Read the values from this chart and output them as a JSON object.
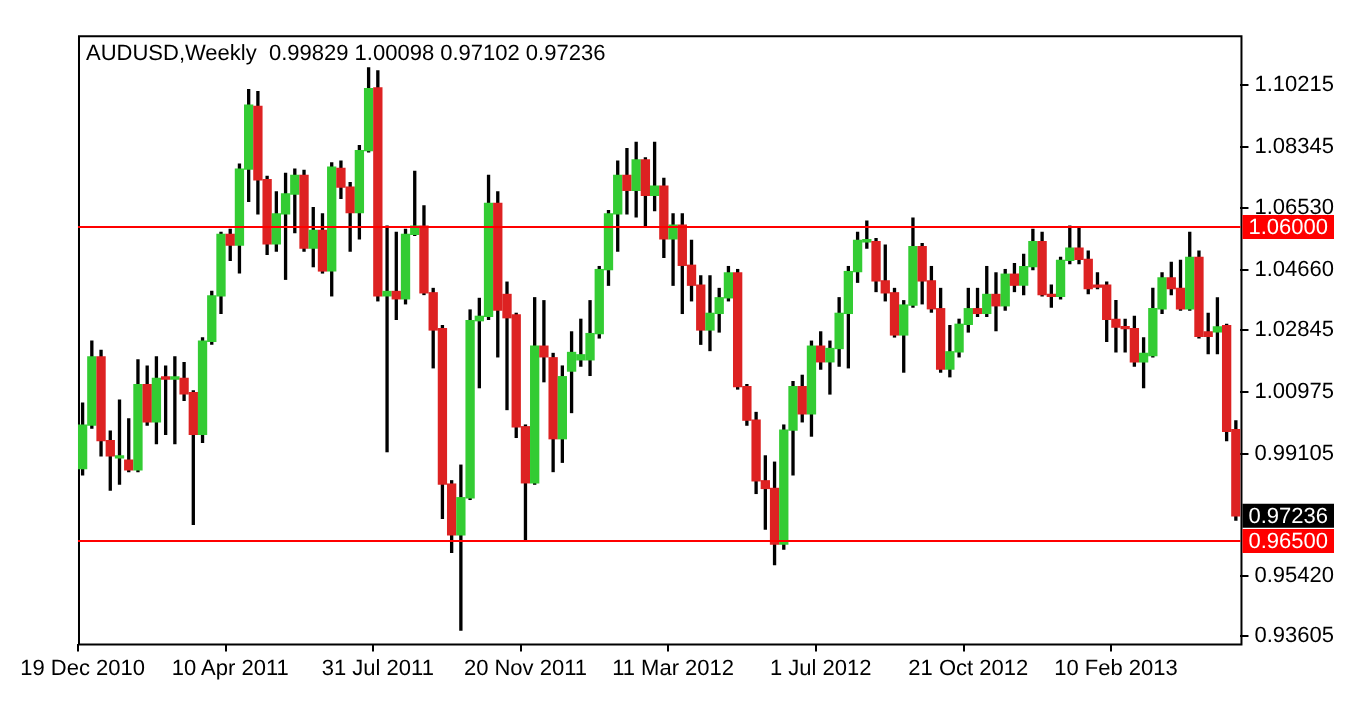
{
  "chart_data": {
    "type": "candlestick",
    "title": "AUDUSD,Weekly  0.99829 1.00098 0.97102 0.97236",
    "categories": [
      "19 Dec 2010",
      null,
      null,
      null,
      null,
      null,
      null,
      null,
      null,
      null,
      null,
      null,
      null,
      null,
      null,
      null,
      "10 Apr 2011",
      null,
      null,
      null,
      null,
      null,
      null,
      null,
      null,
      null,
      null,
      null,
      null,
      null,
      null,
      null,
      "31 Jul 2011",
      null,
      null,
      null,
      null,
      null,
      null,
      null,
      null,
      null,
      null,
      null,
      null,
      null,
      null,
      null,
      "20 Nov 2011",
      null,
      null,
      null,
      null,
      null,
      null,
      null,
      null,
      null,
      null,
      null,
      null,
      null,
      null,
      null,
      "11 Mar 2012",
      null,
      null,
      null,
      null,
      null,
      null,
      null,
      null,
      null,
      null,
      null,
      null,
      null,
      null,
      null,
      "1 Jul 2012",
      null,
      null,
      null,
      null,
      null,
      null,
      null,
      null,
      null,
      null,
      null,
      null,
      null,
      null,
      null,
      "21 Oct 2012",
      null,
      null,
      null,
      null,
      null,
      null,
      null,
      null,
      null,
      null,
      null,
      null,
      null,
      null,
      null,
      "10 Feb 2013",
      null,
      null,
      null,
      null,
      null,
      null,
      null,
      null,
      null,
      null,
      null,
      null,
      null
    ],
    "ohlc": [
      [
        0.9866,
        1.0063,
        0.9847,
        0.9997
      ],
      [
        0.9997,
        1.025,
        0.9988,
        1.0203
      ],
      [
        1.0203,
        1.0222,
        0.9904,
        0.995
      ],
      [
        0.995,
        0.9979,
        0.9801,
        0.9904
      ],
      [
        0.9898,
        1.0072,
        0.9819,
        0.99
      ],
      [
        0.9891,
        1.0016,
        0.9857,
        0.9862
      ],
      [
        0.9862,
        1.0194,
        0.9857,
        1.0119
      ],
      [
        1.0119,
        1.0175,
        0.9997,
        1.0007
      ],
      [
        1.0007,
        1.0203,
        0.9941,
        1.0138
      ],
      [
        1.0138,
        1.0175,
        0.9969,
        1.0136
      ],
      [
        1.0136,
        1.0203,
        0.9941,
        1.0138
      ],
      [
        1.0138,
        1.0185,
        1.0072,
        1.0091
      ],
      [
        1.0095,
        1.01,
        0.9698,
        0.9969
      ],
      [
        0.9969,
        1.026,
        0.9945,
        1.025
      ],
      [
        1.025,
        1.04,
        1.0241,
        1.0387
      ],
      [
        1.0387,
        1.0578,
        1.0334,
        1.0572
      ],
      [
        1.0572,
        1.0587,
        1.0494,
        1.054
      ],
      [
        1.054,
        1.0784,
        1.0456,
        1.0769
      ],
      [
        1.0769,
        1.1009,
        1.0672,
        1.0962
      ],
      [
        1.0958,
        1.1003,
        1.0634,
        1.0737
      ],
      [
        1.0737,
        1.0747,
        1.0512,
        1.0544
      ],
      [
        1.0544,
        1.07,
        1.0522,
        1.0634
      ],
      [
        1.0634,
        1.0756,
        1.0437,
        1.0694
      ],
      [
        1.0694,
        1.0769,
        1.0578,
        1.075
      ],
      [
        1.075,
        1.0765,
        1.0522,
        1.0531
      ],
      [
        1.0531,
        1.0653,
        1.0475,
        1.0584
      ],
      [
        1.0584,
        1.0634,
        1.0456,
        1.0462
      ],
      [
        1.0462,
        1.0788,
        1.0387,
        1.0775
      ],
      [
        1.0771,
        1.0793,
        1.0681,
        1.0715
      ],
      [
        1.0715,
        1.0728,
        1.0522,
        1.0638
      ],
      [
        1.0638,
        1.084,
        1.0559,
        1.0825
      ],
      [
        1.0825,
        1.1074,
        1.0821,
        1.1012
      ],
      [
        1.1014,
        1.1065,
        1.0372,
        1.0387
      ],
      [
        1.0387,
        1.0597,
        0.9917,
        1.04
      ],
      [
        1.04,
        1.0578,
        1.0316,
        1.0378
      ],
      [
        1.0378,
        1.0587,
        1.0363,
        1.0572
      ],
      [
        1.0572,
        1.0762,
        1.0569,
        1.0597
      ],
      [
        1.0597,
        1.0658,
        1.0391,
        1.0396
      ],
      [
        1.0396,
        1.0409,
        1.017,
        1.0284
      ],
      [
        1.0288,
        1.0297,
        0.9716,
        0.9819
      ],
      [
        0.9819,
        0.9829,
        0.9613,
        0.9666
      ],
      [
        0.9666,
        0.9876,
        0.9379,
        0.9778
      ],
      [
        0.9778,
        1.0344,
        0.9773,
        1.0312
      ],
      [
        1.0312,
        1.0379,
        1.011,
        1.0325
      ],
      [
        1.0325,
        1.075,
        1.0316,
        1.0666
      ],
      [
        1.0666,
        1.07,
        1.0203,
        1.0344
      ],
      [
        1.0391,
        1.0428,
        1.0044,
        1.0321
      ],
      [
        1.0329,
        1.0334,
        0.996,
        0.9992
      ],
      [
        0.9992,
        0.9997,
        0.9651,
        0.9823
      ],
      [
        0.9823,
        1.0381,
        0.9819,
        1.0235
      ],
      [
        1.0235,
        1.0372,
        1.0128,
        1.0203
      ],
      [
        1.02,
        1.0213,
        0.9857,
        0.9956
      ],
      [
        0.9956,
        1.0175,
        0.9885,
        1.0143
      ],
      [
        1.016,
        1.0278,
        1.0035,
        1.0216
      ],
      [
        1.0194,
        1.0316,
        1.0175,
        1.0209
      ],
      [
        1.0194,
        1.0372,
        1.0147,
        1.0273
      ],
      [
        1.0273,
        1.0475,
        1.026,
        1.0466
      ],
      [
        1.0466,
        1.0644,
        1.0419,
        1.0634
      ],
      [
        1.0634,
        1.0793,
        1.0522,
        1.075
      ],
      [
        1.075,
        1.0831,
        1.0634,
        1.0705
      ],
      [
        1.0705,
        1.085,
        1.0625,
        1.0797
      ],
      [
        1.0797,
        1.0803,
        1.0597,
        1.069
      ],
      [
        1.069,
        1.085,
        1.0644,
        1.0718
      ],
      [
        1.0718,
        1.0741,
        1.0503,
        1.0559
      ],
      [
        1.0559,
        1.0634,
        1.0419,
        1.06
      ],
      [
        1.06,
        1.0634,
        1.0334,
        1.0479
      ],
      [
        1.0479,
        1.0554,
        1.0372,
        1.0419
      ],
      [
        1.0419,
        1.0447,
        1.0241,
        1.0284
      ],
      [
        1.0284,
        1.0447,
        1.0222,
        1.0334
      ],
      [
        1.0334,
        1.0409,
        1.0278,
        1.0381
      ],
      [
        1.0381,
        1.0475,
        1.0372,
        1.0456
      ],
      [
        1.0456,
        1.0466,
        1.0106,
        1.0113
      ],
      [
        1.0113,
        1.0119,
        0.9997,
        1.0012
      ],
      [
        1.0012,
        1.0035,
        0.9791,
        0.9829
      ],
      [
        0.9829,
        0.9904,
        0.9683,
        0.9806
      ],
      [
        0.9806,
        0.9885,
        0.9576,
        0.9638
      ],
      [
        0.9638,
        0.9997,
        0.9623,
        0.9982
      ],
      [
        0.9982,
        1.0128,
        0.9847,
        1.0113
      ],
      [
        1.0113,
        1.0147,
        1.0007,
        1.0031
      ],
      [
        1.0031,
        1.025,
        0.9964,
        1.0235
      ],
      [
        1.0235,
        1.0278,
        1.0166,
        1.0188
      ],
      [
        1.0188,
        1.025,
        1.0091,
        1.0228
      ],
      [
        1.0228,
        1.0381,
        1.0175,
        1.0334
      ],
      [
        1.0334,
        1.0475,
        1.017,
        1.046
      ],
      [
        1.046,
        1.0578,
        1.0428,
        1.0554
      ],
      [
        1.055,
        1.0612,
        1.0531,
        1.0554
      ],
      [
        1.055,
        1.0559,
        1.04,
        1.0432
      ],
      [
        1.0432,
        1.054,
        1.0372,
        1.0396
      ],
      [
        1.0396,
        1.0409,
        1.0263,
        1.0269
      ],
      [
        1.0269,
        1.0372,
        1.0157,
        1.0359
      ],
      [
        1.0359,
        1.0621,
        1.0353,
        1.0535
      ],
      [
        1.0535,
        1.0544,
        1.0363,
        1.0432
      ],
      [
        1.0432,
        1.0475,
        1.0338,
        1.0348
      ],
      [
        1.0348,
        1.0409,
        1.0157,
        1.0166
      ],
      [
        1.0166,
        1.0297,
        1.0143,
        1.0218
      ],
      [
        1.0218,
        1.0316,
        1.0203,
        1.0301
      ],
      [
        1.0301,
        1.0409,
        1.0278,
        1.0348
      ],
      [
        1.0348,
        1.0409,
        1.0325,
        1.0334
      ],
      [
        1.0334,
        1.0475,
        1.0325,
        1.0391
      ],
      [
        1.0391,
        1.0456,
        1.0282,
        1.0357
      ],
      [
        1.0357,
        1.0466,
        1.0344,
        1.0452
      ],
      [
        1.0452,
        1.0484,
        1.04,
        1.0419
      ],
      [
        1.0419,
        1.0512,
        1.0391,
        1.0475
      ],
      [
        1.0475,
        1.0587,
        1.0466,
        1.055
      ],
      [
        1.055,
        1.0578,
        1.0387,
        1.0391
      ],
      [
        1.0391,
        1.0419,
        1.0353,
        1.0385
      ],
      [
        1.0385,
        1.0503,
        1.0378,
        1.0494
      ],
      [
        1.0494,
        1.0597,
        1.0484,
        1.0531
      ],
      [
        1.0531,
        1.0593,
        1.0484,
        1.0497
      ],
      [
        1.0497,
        1.0522,
        1.0394,
        1.0409
      ],
      [
        1.0419,
        1.0456,
        1.0409,
        1.0413
      ],
      [
        1.0419,
        1.0428,
        1.025,
        1.0316
      ],
      [
        1.0316,
        1.0372,
        1.0218,
        1.0293
      ],
      [
        1.0293,
        1.0316,
        1.0218,
        1.0288
      ],
      [
        1.0288,
        1.0325,
        1.0175,
        1.0188
      ],
      [
        1.0188,
        1.026,
        1.011,
        1.0213
      ],
      [
        1.0207,
        1.0409,
        1.0203,
        1.0348
      ],
      [
        1.0348,
        1.0456,
        1.0334,
        1.0441
      ],
      [
        1.0441,
        1.0488,
        1.0391,
        1.0409
      ],
      [
        1.0409,
        1.0494,
        1.0344,
        1.0348
      ],
      [
        1.0348,
        1.0578,
        1.0344,
        1.0503
      ],
      [
        1.0503,
        1.0522,
        1.026,
        1.0265
      ],
      [
        1.0278,
        1.0334,
        1.0213,
        1.0265
      ],
      [
        1.0278,
        1.0381,
        1.0213,
        1.0293
      ],
      [
        1.0297,
        1.0301,
        0.995,
        0.9978
      ],
      [
        0.99829,
        1.00098,
        0.97102,
        0.97236
      ]
    ],
    "colors": [
      "#33cc33",
      "#33cc33",
      "#dd2222",
      "#dd2222",
      "#33cc33",
      "#dd2222",
      "#33cc33",
      "#dd2222",
      "#33cc33",
      "#dd2222",
      "#33cc33",
      "#dd2222",
      "#dd2222",
      "#33cc33",
      "#33cc33",
      "#33cc33",
      "#dd2222",
      "#33cc33",
      "#33cc33",
      "#dd2222",
      "#dd2222",
      "#33cc33",
      "#33cc33",
      "#33cc33",
      "#dd2222",
      "#33cc33",
      "#dd2222",
      "#33cc33",
      "#dd2222",
      "#dd2222",
      "#33cc33",
      "#33cc33",
      "#dd2222",
      "#33cc33",
      "#dd2222",
      "#33cc33",
      "#33cc33",
      "#dd2222",
      "#dd2222",
      "#dd2222",
      "#dd2222",
      "#33cc33",
      "#33cc33",
      "#33cc33",
      "#33cc33",
      "#dd2222",
      "#dd2222",
      "#dd2222",
      "#dd2222",
      "#33cc33",
      "#dd2222",
      "#dd2222",
      "#33cc33",
      "#33cc33",
      "#33cc33",
      "#33cc33",
      "#33cc33",
      "#33cc33",
      "#33cc33",
      "#dd2222",
      "#33cc33",
      "#dd2222",
      "#33cc33",
      "#dd2222",
      "#33cc33",
      "#dd2222",
      "#dd2222",
      "#dd2222",
      "#33cc33",
      "#33cc33",
      "#33cc33",
      "#dd2222",
      "#dd2222",
      "#dd2222",
      "#dd2222",
      "#dd2222",
      "#33cc33",
      "#33cc33",
      "#dd2222",
      "#33cc33",
      "#dd2222",
      "#33cc33",
      "#33cc33",
      "#33cc33",
      "#33cc33",
      "#33cc33",
      "#dd2222",
      "#dd2222",
      "#dd2222",
      "#33cc33",
      "#33cc33",
      "#dd2222",
      "#dd2222",
      "#dd2222",
      "#33cc33",
      "#33cc33",
      "#33cc33",
      "#dd2222",
      "#33cc33",
      "#dd2222",
      "#33cc33",
      "#dd2222",
      "#33cc33",
      "#33cc33",
      "#dd2222",
      "#dd2222",
      "#33cc33",
      "#33cc33",
      "#dd2222",
      "#dd2222",
      "#dd2222",
      "#dd2222",
      "#dd2222",
      "#dd2222",
      "#dd2222",
      "#33cc33",
      "#33cc33",
      "#33cc33",
      "#dd2222",
      "#dd2222",
      "#33cc33",
      "#dd2222",
      "#dd2222",
      "#33cc33",
      "#dd2222",
      "#dd2222"
    ],
    "ylim": [
      0.9338,
      1.1173
    ],
    "yticks": [
      1.10215,
      1.08345,
      {
        "value": 1.0653,
        "label": "1.06530"
      },
      {
        "value": 1.0466,
        "label": "1.04660"
      },
      1.02845,
      1.00975,
      0.99105,
      {
        "value": 0.9542,
        "label": "0.95420"
      },
      0.93605
    ],
    "ref_lines": [
      {
        "axis": "y",
        "value": 1.06,
        "label": "1.06000",
        "color": "#ff0000"
      },
      {
        "axis": "y",
        "value": 0.965,
        "label": "0.96500",
        "color": "#ff0000"
      }
    ],
    "annotations": [
      "0.97236"
    ]
  }
}
